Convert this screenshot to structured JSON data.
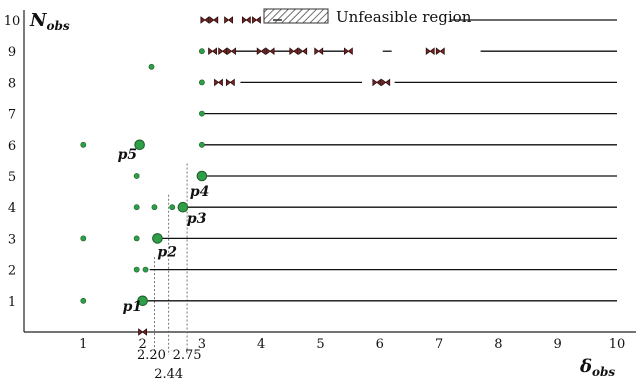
{
  "diagram": {
    "y_axis_label": "N",
    "y_axis_label_sub": "obs",
    "x_axis_label": "δ",
    "x_axis_label_sub": "obs",
    "legend_label": "Unfeasible region",
    "colors": {
      "point": "#2e9e47",
      "point_stroke": "#1b5e2b",
      "marker": "#7a2424",
      "line": "#111111",
      "guide": "#555555"
    }
  },
  "chart_data": {
    "type": "scatter",
    "title": "",
    "xlabel": "δobs",
    "ylabel": "Nobs",
    "xlim": [
      0,
      10.2
    ],
    "ylim": [
      0,
      10.6
    ],
    "x_ticks": [
      "1",
      "2",
      "3",
      "4",
      "5",
      "6",
      "7",
      "8",
      "9",
      "10"
    ],
    "y_ticks": [
      "1",
      "2",
      "3",
      "4",
      "5",
      "6",
      "7",
      "8",
      "9",
      "10"
    ],
    "guide_lines": [
      {
        "x": 2.2,
        "y": 1,
        "label": "2.20"
      },
      {
        "x": 2.44,
        "y": 3,
        "label": "2.44"
      },
      {
        "x": 2.75,
        "y": 4,
        "label": "2.75"
      }
    ],
    "feasible_intervals": [
      {
        "n": 1,
        "x_start": 2.0,
        "x_end": 10
      },
      {
        "n": 2,
        "x_start": 2.12,
        "x_end": 10
      },
      {
        "n": 3,
        "x_start": 2.25,
        "x_end": 10
      },
      {
        "n": 4,
        "x_start": 2.68,
        "x_end": 10
      },
      {
        "n": 5,
        "x_start": 3.0,
        "x_end": 10
      },
      {
        "n": 6,
        "x_start": 3.0,
        "x_end": 10
      },
      {
        "n": 7,
        "x_start": 3.0,
        "x_end": 10
      },
      {
        "n": 8,
        "x_start": 3.65,
        "x_end": 5.7
      },
      {
        "n": 8,
        "x_start": 6.25,
        "x_end": 10
      },
      {
        "n": 9,
        "x_start": 3.55,
        "x_end": 3.95
      },
      {
        "n": 9,
        "x_start": 4.2,
        "x_end": 4.5
      },
      {
        "n": 9,
        "x_start": 5.0,
        "x_end": 5.42
      },
      {
        "n": 9,
        "x_start": 6.05,
        "x_end": 6.2
      },
      {
        "n": 9,
        "x_start": 7.7,
        "x_end": 10
      },
      {
        "n": 10,
        "x_start": 4.2,
        "x_end": 4.35
      },
      {
        "n": 10,
        "x_start": 7.2,
        "x_end": 10
      }
    ],
    "points": [
      {
        "x": 1.0,
        "y": 1
      },
      {
        "x": 1.0,
        "y": 3
      },
      {
        "x": 1.0,
        "y": 6
      },
      {
        "x": 1.9,
        "y": 2
      },
      {
        "x": 1.9,
        "y": 3
      },
      {
        "x": 1.9,
        "y": 4
      },
      {
        "x": 1.9,
        "y": 5
      },
      {
        "x": 2.05,
        "y": 2
      },
      {
        "x": 2.2,
        "y": 4
      },
      {
        "x": 2.5,
        "y": 4
      },
      {
        "x": 2.15,
        "y": 8.5
      },
      {
        "x": 3.0,
        "y": 6
      },
      {
        "x": 3.0,
        "y": 7
      },
      {
        "x": 3.0,
        "y": 8
      },
      {
        "x": 3.0,
        "y": 9
      }
    ],
    "labeled_points": [
      {
        "name": "p1",
        "x": 2.0,
        "y": 1
      },
      {
        "name": "p2",
        "x": 2.25,
        "y": 3
      },
      {
        "name": "p3",
        "x": 2.68,
        "y": 4
      },
      {
        "name": "p4",
        "x": 3.0,
        "y": 5
      },
      {
        "name": "p5",
        "x": 1.95,
        "y": 6
      }
    ],
    "unfeasible_markers": [
      {
        "x": 2.0,
        "y": 0
      },
      {
        "x": 3.05,
        "y": 10
      },
      {
        "x": 3.2,
        "y": 10
      },
      {
        "x": 3.45,
        "y": 10
      },
      {
        "x": 3.75,
        "y": 10
      },
      {
        "x": 3.92,
        "y": 10
      },
      {
        "x": 3.18,
        "y": 9
      },
      {
        "x": 3.35,
        "y": 9
      },
      {
        "x": 3.5,
        "y": 9
      },
      {
        "x": 4.0,
        "y": 9
      },
      {
        "x": 4.15,
        "y": 9
      },
      {
        "x": 4.55,
        "y": 9
      },
      {
        "x": 4.7,
        "y": 9
      },
      {
        "x": 4.97,
        "y": 9
      },
      {
        "x": 5.47,
        "y": 9
      },
      {
        "x": 6.85,
        "y": 9
      },
      {
        "x": 7.02,
        "y": 9
      },
      {
        "x": 3.28,
        "y": 8
      },
      {
        "x": 3.48,
        "y": 8
      },
      {
        "x": 5.95,
        "y": 8
      },
      {
        "x": 6.1,
        "y": 8
      }
    ]
  }
}
